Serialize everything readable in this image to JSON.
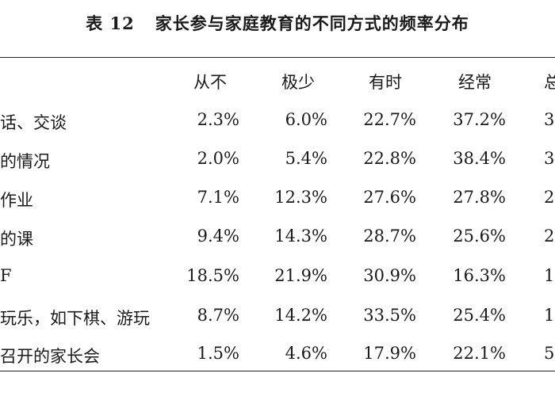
{
  "caption": {
    "table_number": "表 12",
    "title": "家长参与家庭教育的不同方式的频率分布"
  },
  "headers": [
    "从不",
    "极少",
    "有时",
    "经常",
    "总"
  ],
  "rows": [
    {
      "label": "话、交谈",
      "values": [
        "2.3%",
        "6.0%",
        "22.7%",
        "37.2%",
        "3"
      ]
    },
    {
      "label": "的情况",
      "values": [
        "2.0%",
        "5.4%",
        "22.8%",
        "38.4%",
        "3"
      ]
    },
    {
      "label": "作业",
      "values": [
        "7.1%",
        "12.3%",
        "27.6%",
        "27.8%",
        "2"
      ]
    },
    {
      "label": "的课",
      "values": [
        "9.4%",
        "14.3%",
        "28.7%",
        "25.6%",
        "2"
      ]
    },
    {
      "label": "F",
      "values": [
        "18.5%",
        "21.9%",
        "30.9%",
        "16.3%",
        "1"
      ]
    },
    {
      "label": "玩乐，如下棋、游玩",
      "values": [
        "8.7%",
        "14.2%",
        "33.5%",
        "25.4%",
        "1"
      ]
    },
    {
      "label": "召开的家长会",
      "values": [
        "1.5%",
        "4.6%",
        "17.9%",
        "22.1%",
        "5"
      ]
    }
  ]
}
